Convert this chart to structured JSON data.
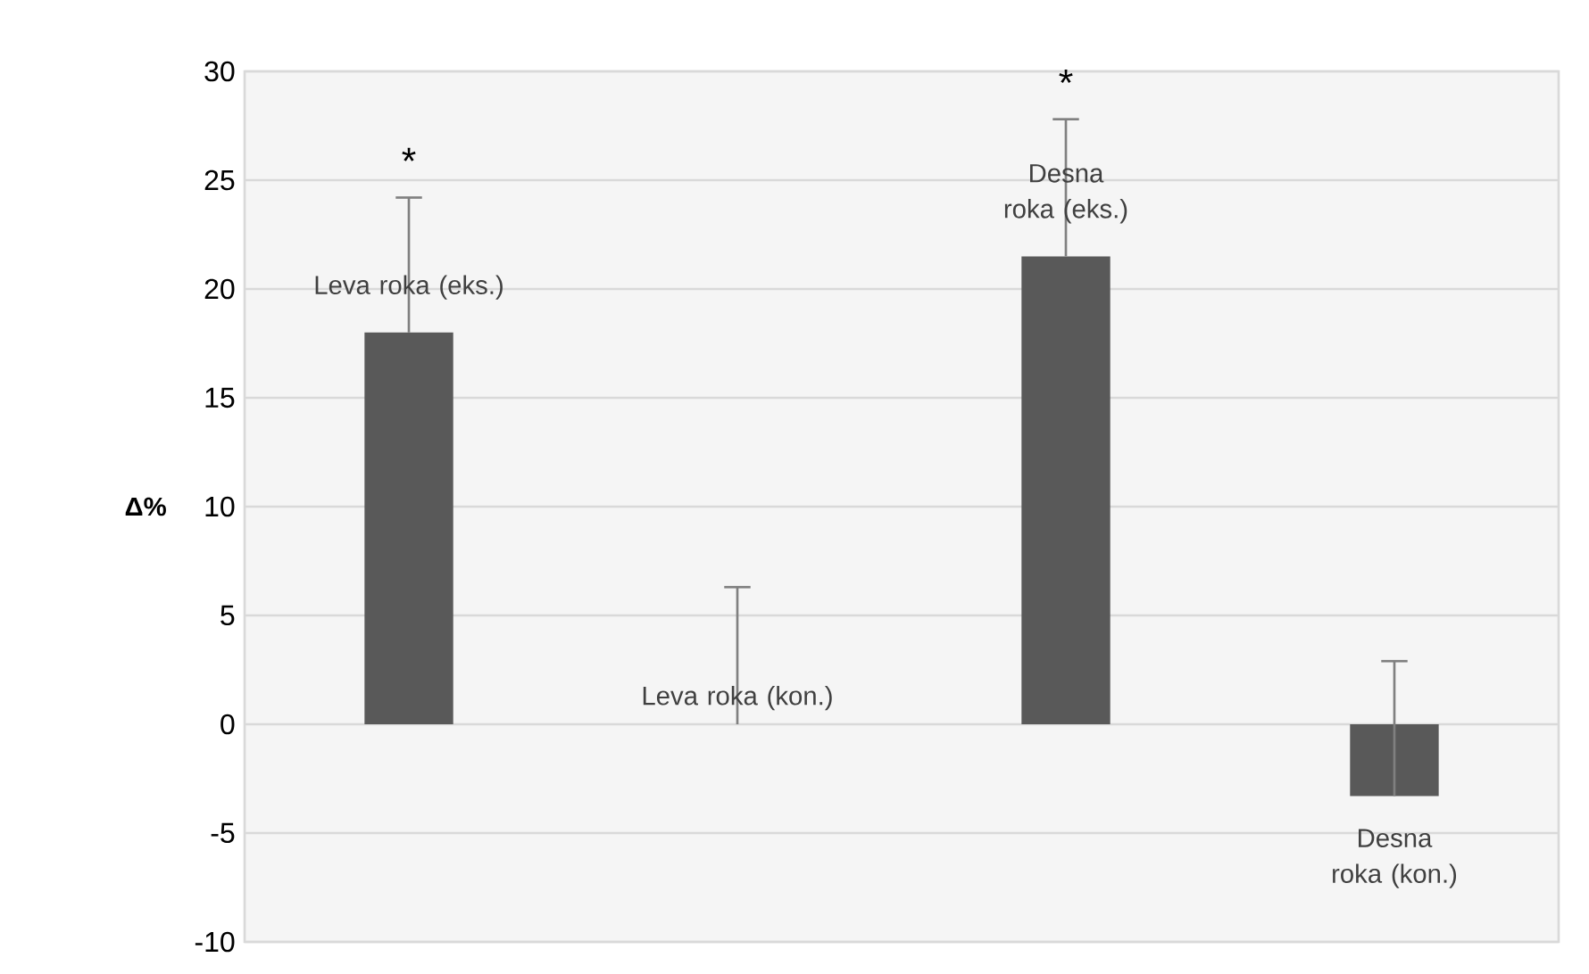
{
  "chart_data": {
    "type": "bar",
    "ylabel": "**Δ%**",
    "categories": [
      "Leva roka (eks.)",
      "Leva roka (kon.)",
      "Desna roka (eks.)",
      "Desna roka (kon.)"
    ],
    "values": [
      18.0,
      0,
      21.5,
      -3.3
    ],
    "errors": [
      [
        18.0,
        24.2
      ],
      [
        0,
        6.3
      ],
      [
        21.5,
        27.8
      ],
      [
        -3.3,
        2.9
      ]
    ],
    "color": "#595959",
    "ylim": [
      -10,
      30
    ],
    "yticks": [
      -10,
      -5,
      0,
      5,
      10,
      15,
      20,
      25,
      30
    ],
    "grid": true,
    "annotations": [
      {
        "text": "*",
        "x": "Leva roka (eks.)",
        "y": 24.2
      },
      {
        "text": "*",
        "x": "Desna roka (eks.)",
        "y": 27.8
      }
    ]
  }
}
